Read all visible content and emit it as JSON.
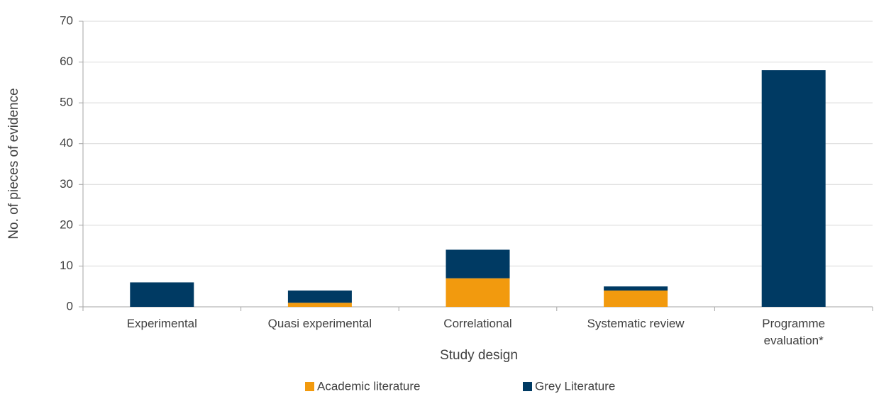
{
  "chart_data": {
    "type": "stacked_bar",
    "categories": [
      "Experimental",
      "Quasi experimental",
      "Correlational",
      "Systematic review",
      "Programme evaluation*"
    ],
    "series": [
      {
        "name": "Academic literature",
        "color": "#f29a0e",
        "values": [
          0,
          1,
          7,
          4,
          0
        ]
      },
      {
        "name": "Grey Literature",
        "color": "#003a63",
        "values": [
          6,
          3,
          7,
          1,
          58
        ]
      }
    ],
    "xlabel": "Study design",
    "ylabel": "No. of pieces of evidence",
    "ylim": [
      0,
      70
    ],
    "yticks": [
      0,
      10,
      20,
      30,
      40,
      50,
      60,
      70
    ],
    "grid": true,
    "legend": "bottom"
  }
}
